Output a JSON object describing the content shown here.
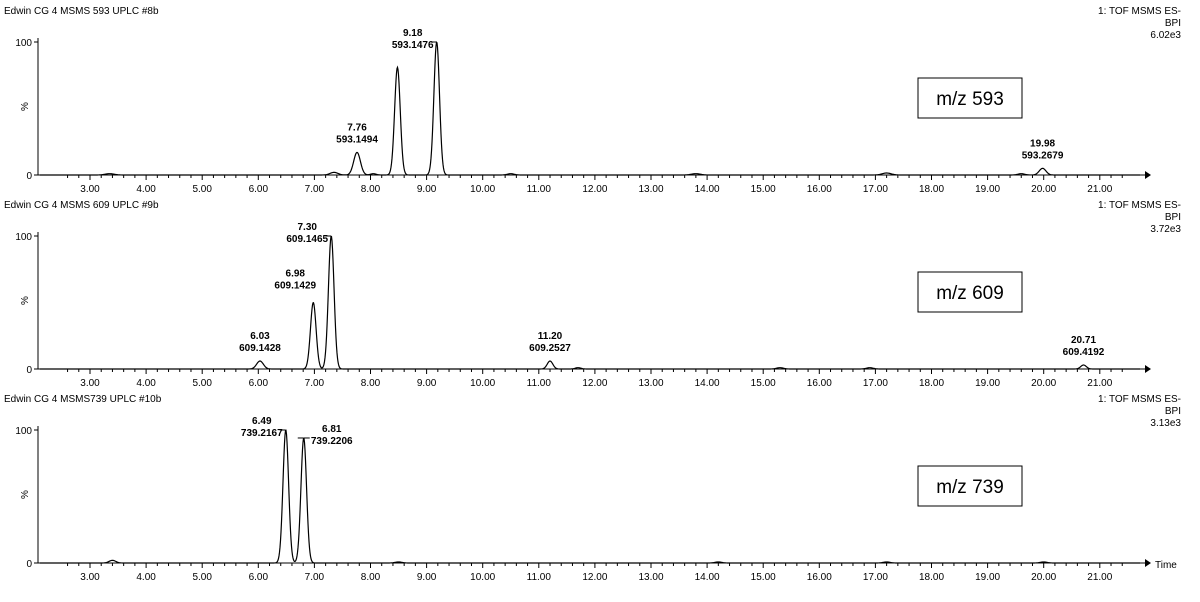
{
  "chart_data": [
    {
      "type": "line",
      "title": "Edwin CG 4  MSMS 593 UPLC #8b",
      "instrument": "1: TOF MSMS ES-",
      "trace": "BPI",
      "intensity": "6.02e3",
      "annotation": "m/z 593",
      "ylabel": "%",
      "xlabel": "",
      "xlim": [
        2.4,
        21.6
      ],
      "ylim": [
        0,
        100
      ],
      "yticks": [
        "0",
        "100"
      ],
      "xticks": [
        "3.00",
        "4.00",
        "5.00",
        "6.00",
        "7.00",
        "8.00",
        "9.00",
        "10.00",
        "11.00",
        "12.00",
        "13.00",
        "14.00",
        "15.00",
        "16.00",
        "17.00",
        "18.00",
        "19.00",
        "20.00",
        "21.00"
      ],
      "peaks": [
        {
          "rt": 3.35,
          "height": 1,
          "width": 0.08
        },
        {
          "rt": 7.35,
          "height": 2,
          "width": 0.07
        },
        {
          "rt": 7.76,
          "height": 17,
          "width": 0.06,
          "label_rt": "7.76",
          "label_mz": "593.1494"
        },
        {
          "rt": 8.05,
          "height": 1,
          "width": 0.05
        },
        {
          "rt": 8.48,
          "height": 81,
          "width": 0.05
        },
        {
          "rt": 9.18,
          "height": 100,
          "width": 0.05,
          "label_rt": "9.18",
          "label_mz": "593.1476"
        },
        {
          "rt": 10.5,
          "height": 1,
          "width": 0.06
        },
        {
          "rt": 13.8,
          "height": 1,
          "width": 0.08
        },
        {
          "rt": 17.2,
          "height": 1.5,
          "width": 0.08
        },
        {
          "rt": 19.6,
          "height": 1,
          "width": 0.06
        },
        {
          "rt": 19.98,
          "height": 5,
          "width": 0.06,
          "label_rt": "19.98",
          "label_mz": "593.2679"
        }
      ]
    },
    {
      "type": "line",
      "title": "Edwin CG 4  MSMS 609 UPLC #9b",
      "instrument": "1: TOF MSMS ES-",
      "trace": "BPI",
      "intensity": "3.72e3",
      "annotation": "m/z 609",
      "ylabel": "%",
      "xlabel": "",
      "xlim": [
        2.4,
        21.6
      ],
      "ylim": [
        0,
        100
      ],
      "yticks": [
        "0",
        "100"
      ],
      "xticks": [
        "3.00",
        "4.00",
        "5.00",
        "6.00",
        "7.00",
        "8.00",
        "9.00",
        "10.00",
        "11.00",
        "12.00",
        "13.00",
        "14.00",
        "15.00",
        "16.00",
        "17.00",
        "18.00",
        "19.00",
        "20.00",
        "21.00"
      ],
      "peaks": [
        {
          "rt": 6.03,
          "height": 6,
          "width": 0.06,
          "label_rt": "6.03",
          "label_mz": "609.1428"
        },
        {
          "rt": 6.98,
          "height": 50,
          "width": 0.05,
          "label_rt": "6.98",
          "label_mz": "609.1429"
        },
        {
          "rt": 7.3,
          "height": 100,
          "width": 0.05,
          "label_rt": "7.30",
          "label_mz": "609.1465"
        },
        {
          "rt": 11.2,
          "height": 6,
          "width": 0.05,
          "label_rt": "11.20",
          "label_mz": "609.2527"
        },
        {
          "rt": 11.7,
          "height": 1,
          "width": 0.05
        },
        {
          "rt": 15.3,
          "height": 1,
          "width": 0.06
        },
        {
          "rt": 16.9,
          "height": 1,
          "width": 0.06
        },
        {
          "rt": 20.71,
          "height": 3,
          "width": 0.05,
          "label_rt": "20.71",
          "label_mz": "609.4192"
        }
      ]
    },
    {
      "type": "line",
      "title": "Edwin CG 4  MSMS739 UPLC #10b",
      "instrument": "1: TOF MSMS ES-",
      "trace": "BPI",
      "intensity": "3.13e3",
      "annotation": "m/z 739",
      "ylabel": "%",
      "xlabel": "Time",
      "xlim": [
        2.4,
        21.6
      ],
      "ylim": [
        0,
        100
      ],
      "yticks": [
        "0",
        "100"
      ],
      "xticks": [
        "3.00",
        "4.00",
        "5.00",
        "6.00",
        "7.00",
        "8.00",
        "9.00",
        "10.00",
        "11.00",
        "12.00",
        "13.00",
        "14.00",
        "15.00",
        "16.00",
        "17.00",
        "18.00",
        "19.00",
        "20.00",
        "21.00"
      ],
      "peaks": [
        {
          "rt": 3.4,
          "height": 2,
          "width": 0.06
        },
        {
          "rt": 6.49,
          "height": 100,
          "width": 0.05,
          "label_rt": "6.49",
          "label_mz": "739.2167"
        },
        {
          "rt": 6.81,
          "height": 94,
          "width": 0.05,
          "label_rt": "6.81",
          "label_mz": "739.2206"
        },
        {
          "rt": 8.5,
          "height": 0.8,
          "width": 0.06
        },
        {
          "rt": 14.2,
          "height": 0.8,
          "width": 0.06
        },
        {
          "rt": 17.2,
          "height": 0.8,
          "width": 0.06
        },
        {
          "rt": 20.0,
          "height": 0.8,
          "width": 0.06
        }
      ]
    }
  ]
}
